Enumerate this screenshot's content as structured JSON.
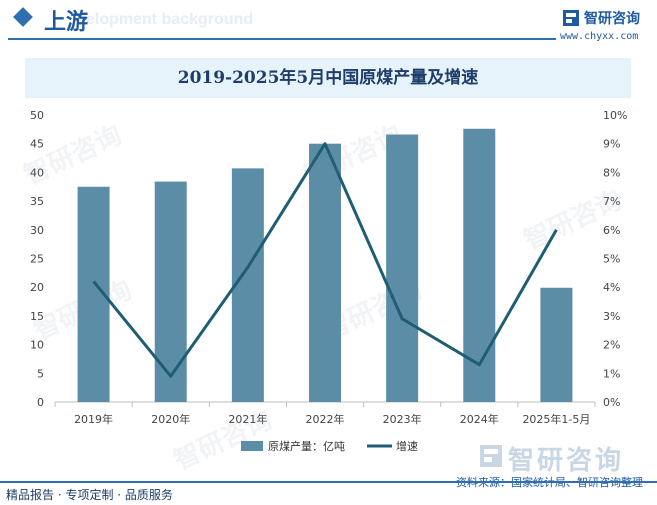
{
  "header": {
    "section_title": "上游",
    "bg_text": "elopment background",
    "brand_name": "智研咨询",
    "brand_url": "www.chyxx.com"
  },
  "chart_data": {
    "type": "bar+line",
    "title": "2019-2025年5月中国原煤产量及增速",
    "categories": [
      "2019年",
      "2020年",
      "2021年",
      "2022年",
      "2023年",
      "2024年",
      "2025年1-5月"
    ],
    "series": [
      {
        "name": "原煤产量：亿吨",
        "type": "bar",
        "axis": "left",
        "color": "#5b8ea6",
        "values": [
          37.5,
          38.4,
          40.7,
          45.0,
          46.6,
          47.6,
          19.9
        ]
      },
      {
        "name": "增速",
        "type": "line",
        "axis": "right",
        "color": "#1f5d73",
        "values": [
          4.2,
          0.9,
          4.7,
          9.0,
          2.9,
          1.3,
          6.0
        ]
      }
    ],
    "y_left": {
      "min": 0,
      "max": 50,
      "ticks": [
        "0",
        "5",
        "10",
        "15",
        "20",
        "25",
        "30",
        "35",
        "40",
        "45",
        "50"
      ]
    },
    "y_right": {
      "min": 0,
      "max": 10,
      "ticks": [
        "0%",
        "1%",
        "2%",
        "3%",
        "4%",
        "5%",
        "6%",
        "7%",
        "8%",
        "9%",
        "10%"
      ]
    },
    "legend_position": "bottom"
  },
  "watermark_text": "智研咨询",
  "source_logo": "智研咨询",
  "source": "资料来源：国家统计局、智研咨询整理",
  "footer": "精品报告 · 专项定制 · 品质服务"
}
